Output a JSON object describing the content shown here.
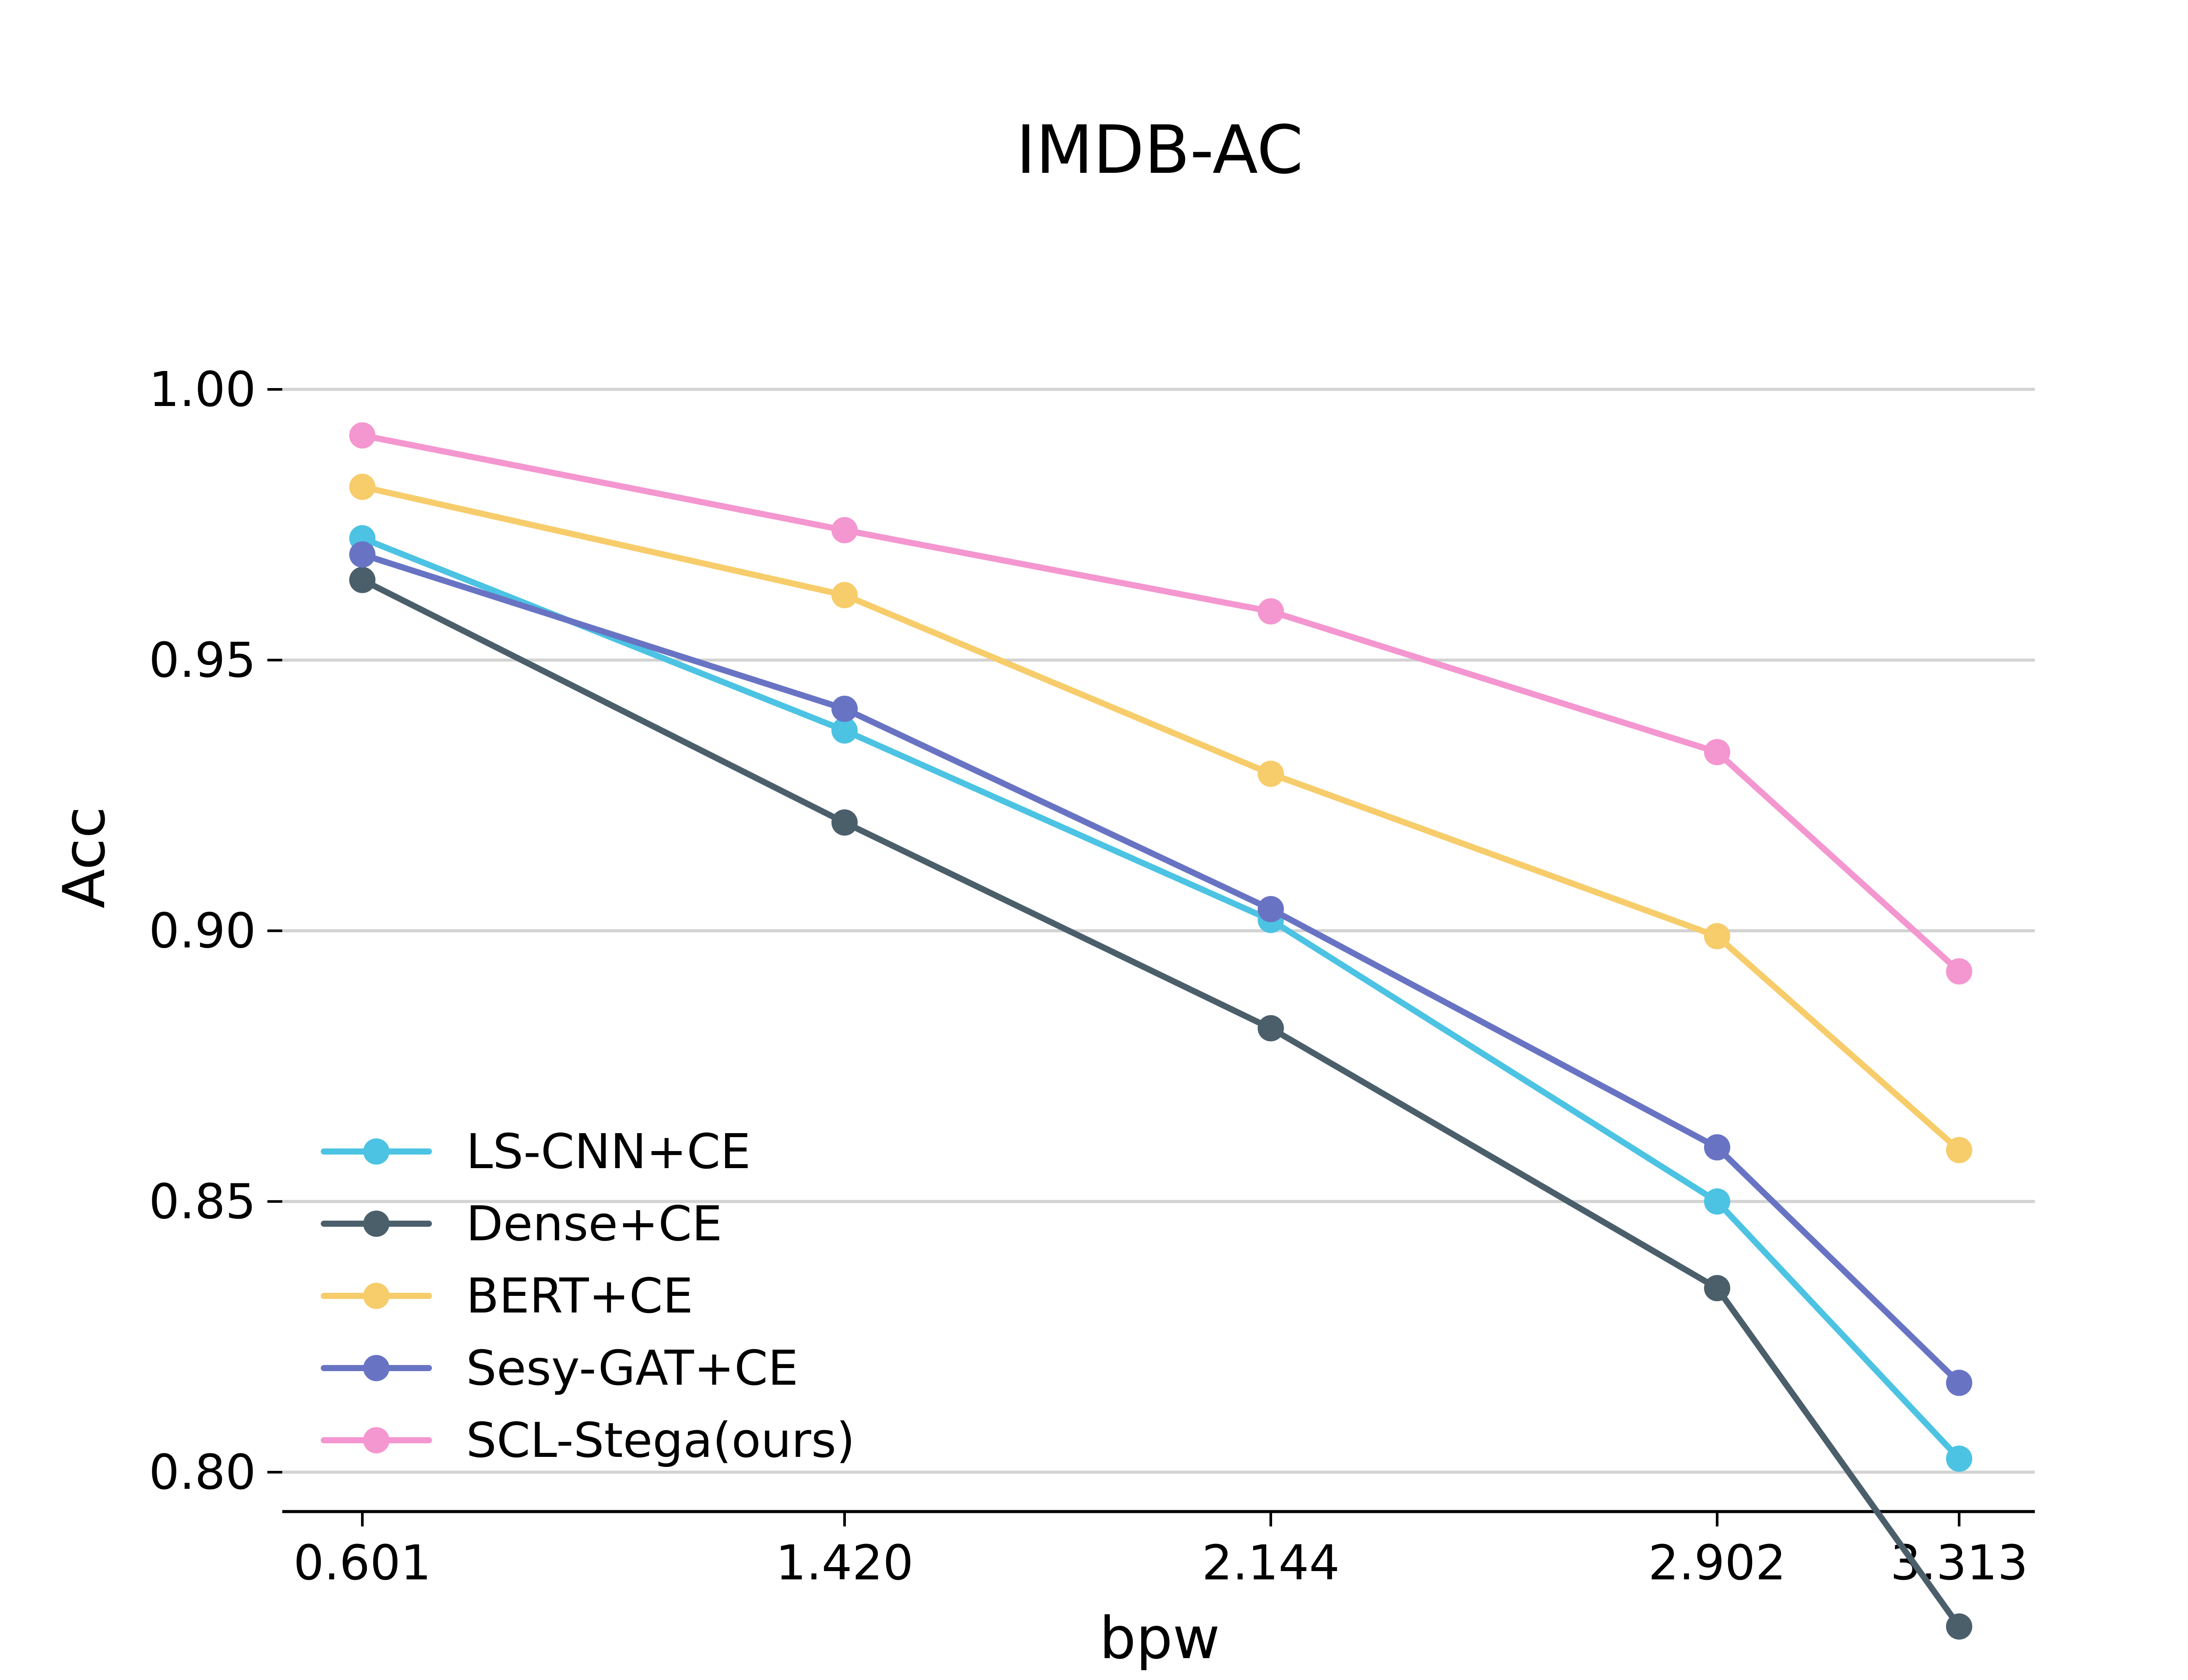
{
  "chart_data": {
    "type": "line",
    "title": "IMDB-AC",
    "xlabel": "bpw",
    "ylabel": "Acc",
    "x": [
      0.601,
      1.42,
      2.144,
      2.902,
      3.313
    ],
    "x_tick_labels": [
      "0.601",
      "1.420",
      "2.144",
      "2.902",
      "3.313"
    ],
    "y_ticks": [
      0.8,
      0.85,
      0.9,
      0.95,
      1.0
    ],
    "y_tick_labels": [
      "0.80",
      "0.85",
      "0.90",
      "0.95",
      "1.00"
    ],
    "ylim": [
      0.772,
      1.0
    ],
    "grid": "horizontal",
    "legend_position": "lower-left",
    "series": [
      {
        "name": "LS-CNN+CE",
        "color": "#4cc3e3",
        "values": [
          0.9725,
          0.937,
          0.902,
          0.85,
          0.8025
        ]
      },
      {
        "name": "Dense+CE",
        "color": "#4b5f6b",
        "values": [
          0.9648,
          0.92,
          0.882,
          0.834,
          0.7715
        ]
      },
      {
        "name": "BERT+CE",
        "color": "#f7cc6b",
        "values": [
          0.982,
          0.962,
          0.929,
          0.899,
          0.8595
        ]
      },
      {
        "name": "Sesy-GAT+CE",
        "color": "#6874c3",
        "values": [
          0.9695,
          0.941,
          0.904,
          0.86,
          0.8165
        ]
      },
      {
        "name": "SCL-Stega(ours)",
        "color": "#f496d0",
        "values": [
          0.9915,
          0.974,
          0.959,
          0.933,
          0.8925
        ]
      }
    ]
  }
}
